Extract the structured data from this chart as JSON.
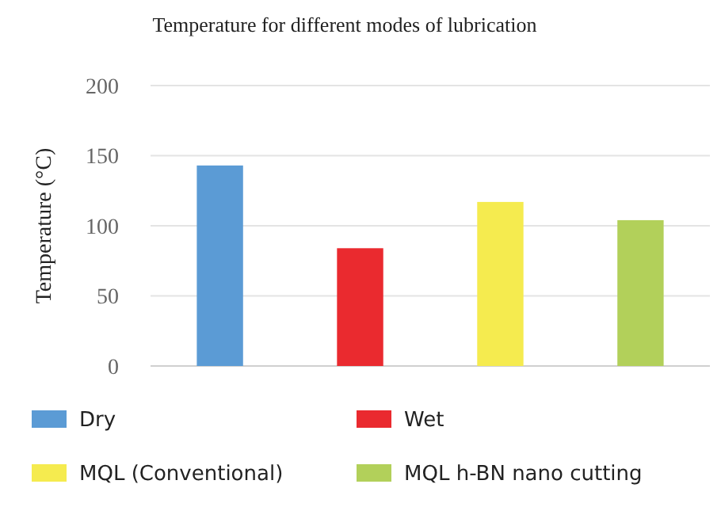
{
  "chart_data": {
    "type": "bar",
    "title": "Temperature for different modes of lubrication",
    "ylabel": "Temperature (°C)",
    "categories": [
      null,
      null,
      null,
      null
    ],
    "series": [
      {
        "name": "Dry",
        "color": "#5b9bd5",
        "values": [
          143,
          null,
          null,
          null
        ]
      },
      {
        "name": "Wet",
        "color": "#ea2a2f",
        "values": [
          null,
          84,
          null,
          null
        ]
      },
      {
        "name": "MQL (Conventional)",
        "color": "#f5eb4f",
        "values": [
          null,
          null,
          117,
          null
        ]
      },
      {
        "name": "MQL h-BN nano cutting",
        "color": "#b2d05a",
        "values": [
          null,
          null,
          null,
          104
        ]
      }
    ],
    "ylim": [
      0,
      200
    ],
    "yticks": [
      0,
      50,
      100,
      150,
      200
    ],
    "grid": "y",
    "legend": "bottom"
  }
}
